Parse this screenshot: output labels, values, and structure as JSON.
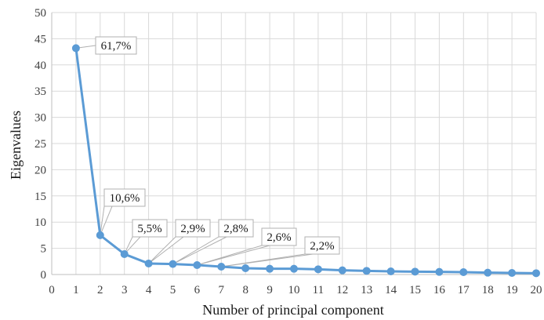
{
  "chart_data": {
    "type": "line",
    "xlabel": "Number of principal component",
    "ylabel": "Eigenvalues",
    "xlim": [
      0,
      20
    ],
    "ylim": [
      0,
      50
    ],
    "x_ticks": [
      "0",
      "1",
      "2",
      "3",
      "4",
      "5",
      "6",
      "7",
      "8",
      "9",
      "10",
      "11",
      "12",
      "13",
      "14",
      "15",
      "16",
      "17",
      "18",
      "19",
      "20"
    ],
    "y_ticks": [
      "0",
      "5",
      "10",
      "15",
      "20",
      "25",
      "30",
      "35",
      "40",
      "45",
      "50"
    ],
    "grid": true,
    "legend": "none",
    "color": "#5b9bd5",
    "series": [
      {
        "x": [
          1,
          2,
          3,
          4,
          5,
          6,
          7,
          8,
          9,
          10,
          11,
          12,
          13,
          14,
          15,
          16,
          17,
          18,
          19,
          20
        ],
        "values": [
          43.2,
          7.5,
          3.9,
          2.1,
          2.0,
          1.8,
          1.5,
          1.2,
          1.1,
          1.1,
          1.0,
          0.8,
          0.7,
          0.6,
          0.55,
          0.5,
          0.45,
          0.35,
          0.3,
          0.25
        ]
      }
    ],
    "data_labels": [
      {
        "x": 1,
        "text": "61,7%"
      },
      {
        "x": 2,
        "text": "10,6%"
      },
      {
        "x": 3,
        "text": "5,5%"
      },
      {
        "x": 4,
        "text": "2,9%"
      },
      {
        "x": 5,
        "text": "2,8%"
      },
      {
        "x": 6,
        "text": "2,6%"
      },
      {
        "x": 7,
        "text": "2,2%"
      }
    ]
  }
}
